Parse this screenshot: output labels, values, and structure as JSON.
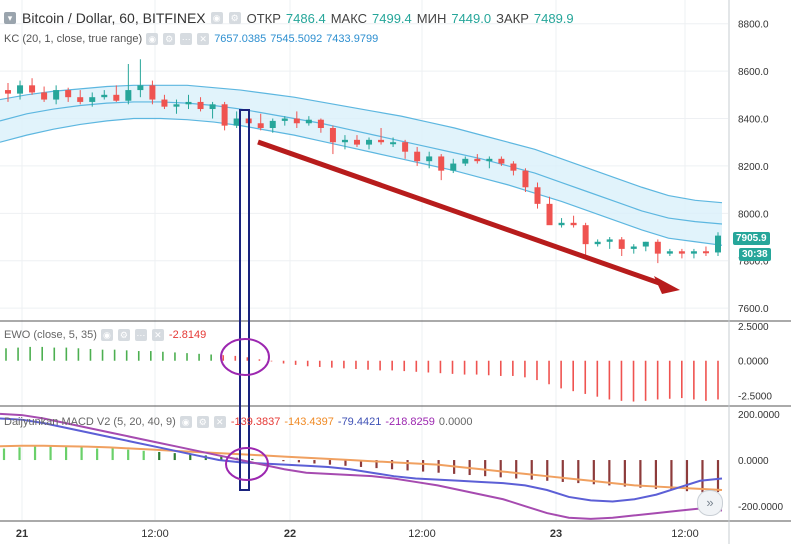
{
  "header": {
    "symbol": "Bitcoin / Dollar, 60, BITFINEX",
    "ohlc": [
      {
        "label": "ОТКР",
        "value": "7486.4"
      },
      {
        "label": "МАКС",
        "value": "7499.4"
      },
      {
        "label": "МИН",
        "value": "7449.0"
      },
      {
        "label": "ЗАКР",
        "value": "7489.9"
      }
    ]
  },
  "kc_legend": {
    "name": "KC (20, 1, close, true range)",
    "values": [
      "7657.0385",
      "7545.5092",
      "7433.9799"
    ]
  },
  "ewo_legend": {
    "name": "EWO (close, 5, 35)",
    "value": "-2.8149"
  },
  "macd_legend": {
    "name": "Daijyunkan MACD V2 (5, 20, 40, 9)",
    "values": [
      "-139.3837",
      "-143.4397",
      "-79.4421",
      "-218.8259",
      "0.0000"
    ]
  },
  "price_badges": {
    "last": "7905.9",
    "timer": "30:38"
  },
  "colors": {
    "up": "#26a69a",
    "down": "#ef5350",
    "kc_band": "#5db7e0",
    "kc_fill": "#d9f0fa",
    "arrow": "#b71c1c",
    "rect": "#1a237e",
    "circle": "#9c27b0",
    "macd_blue": "#5c5fd6",
    "macd_purple": "#a64bb0",
    "macd_orange": "#f0a060",
    "hist_green": "#6ad06a",
    "hist_dark": "#8d3b3b"
  },
  "icons": [
    "eye-icon",
    "settings-icon",
    "close-icon",
    "forward-icon"
  ],
  "chart_data": [
    {
      "type": "candlestick",
      "panel": "price",
      "ylim": [
        7550,
        8900
      ],
      "yticks": [
        7600,
        7800,
        8000,
        8200,
        8400,
        8600,
        8800
      ],
      "ytick_labels": [
        "7600.0",
        "7800.0",
        "8000.0",
        "8200.0",
        "8400.0",
        "8600.0",
        "8800.0"
      ],
      "x_labels": [
        "21",
        "12:00",
        "22",
        "12:00",
        "23",
        "12:00"
      ],
      "candles": [
        [
          8520,
          8550,
          8470,
          8505
        ],
        [
          8505,
          8560,
          8480,
          8540
        ],
        [
          8540,
          8570,
          8500,
          8510
        ],
        [
          8510,
          8535,
          8470,
          8480
        ],
        [
          8480,
          8540,
          8460,
          8520
        ],
        [
          8520,
          8530,
          8470,
          8490
        ],
        [
          8490,
          8520,
          8460,
          8470
        ],
        [
          8470,
          8510,
          8450,
          8490
        ],
        [
          8490,
          8520,
          8480,
          8500
        ],
        [
          8500,
          8540,
          8470,
          8475
        ],
        [
          8475,
          8630,
          8460,
          8520
        ],
        [
          8520,
          8650,
          8490,
          8540
        ],
        [
          8540,
          8560,
          8460,
          8480
        ],
        [
          8480,
          8500,
          8440,
          8450
        ],
        [
          8450,
          8480,
          8420,
          8460
        ],
        [
          8460,
          8500,
          8440,
          8470
        ],
        [
          8470,
          8490,
          8430,
          8440
        ],
        [
          8440,
          8470,
          8400,
          8460
        ],
        [
          8460,
          8470,
          8350,
          8370
        ],
        [
          8370,
          8430,
          8360,
          8400
        ],
        [
          8400,
          8420,
          8360,
          8380
        ],
        [
          8380,
          8420,
          8350,
          8360
        ],
        [
          8360,
          8400,
          8340,
          8390
        ],
        [
          8390,
          8410,
          8370,
          8400
        ],
        [
          8400,
          8430,
          8360,
          8380
        ],
        [
          8380,
          8410,
          8370,
          8395
        ],
        [
          8395,
          8400,
          8340,
          8360
        ],
        [
          8360,
          8370,
          8250,
          8300
        ],
        [
          8300,
          8330,
          8270,
          8310
        ],
        [
          8310,
          8330,
          8280,
          8290
        ],
        [
          8290,
          8320,
          8270,
          8310
        ],
        [
          8310,
          8360,
          8290,
          8300
        ],
        [
          8300,
          8320,
          8280,
          8300
        ],
        [
          8300,
          8310,
          8230,
          8260
        ],
        [
          8260,
          8280,
          8200,
          8220
        ],
        [
          8220,
          8260,
          8190,
          8240
        ],
        [
          8240,
          8250,
          8140,
          8180
        ],
        [
          8180,
          8230,
          8170,
          8210
        ],
        [
          8210,
          8240,
          8200,
          8230
        ],
        [
          8230,
          8250,
          8210,
          8220
        ],
        [
          8220,
          8240,
          8190,
          8230
        ],
        [
          8230,
          8240,
          8200,
          8210
        ],
        [
          8210,
          8220,
          8160,
          8180
        ],
        [
          8180,
          8190,
          8090,
          8110
        ],
        [
          8110,
          8130,
          8020,
          8040
        ],
        [
          8040,
          8070,
          7960,
          7950
        ],
        [
          7950,
          7980,
          7940,
          7960
        ],
        [
          7960,
          7990,
          7940,
          7950
        ],
        [
          7950,
          7960,
          7820,
          7870
        ],
        [
          7870,
          7890,
          7860,
          7880
        ],
        [
          7880,
          7900,
          7850,
          7890
        ],
        [
          7890,
          7900,
          7820,
          7850
        ],
        [
          7850,
          7870,
          7830,
          7860
        ],
        [
          7860,
          7880,
          7840,
          7880
        ],
        [
          7880,
          7890,
          7790,
          7830
        ],
        [
          7830,
          7850,
          7820,
          7840
        ],
        [
          7840,
          7850,
          7810,
          7830
        ],
        [
          7830,
          7850,
          7810,
          7840
        ],
        [
          7840,
          7860,
          7820,
          7835
        ],
        [
          7835,
          7920,
          7820,
          7906
        ]
      ],
      "kc_upper": [
        8480,
        8500,
        8515,
        8525,
        8535,
        8540,
        8540,
        8540,
        8530,
        8520,
        8505,
        8490,
        8470,
        8450,
        8430,
        8410,
        8385,
        8360,
        8330,
        8300,
        8270,
        8230,
        8190,
        8150,
        8110,
        8075,
        8055,
        8045
      ],
      "kc_mid": [
        8390,
        8420,
        8440,
        8455,
        8465,
        8470,
        8470,
        8465,
        8455,
        8440,
        8420,
        8400,
        8380,
        8355,
        8330,
        8305,
        8280,
        8255,
        8230,
        8200,
        8170,
        8130,
        8090,
        8050,
        8010,
        7980,
        7965,
        7955
      ],
      "kc_lower": [
        8300,
        8330,
        8355,
        8375,
        8390,
        8400,
        8400,
        8395,
        8385,
        8370,
        8350,
        8330,
        8305,
        8280,
        8255,
        8230,
        8205,
        8180,
        8150,
        8120,
        8085,
        8050,
        8010,
        7970,
        7930,
        7895,
        7880,
        7865
      ]
    },
    {
      "type": "bar",
      "panel": "EWO",
      "ylim": [
        -3.2,
        2.8
      ],
      "yticks": [
        2.5,
        0,
        -2.5
      ],
      "ytick_labels": [
        "2.5000",
        "0.0000",
        "-2.5000"
      ],
      "values": [
        0.9,
        0.95,
        1.0,
        1.0,
        0.95,
        0.95,
        0.9,
        0.85,
        0.8,
        0.8,
        0.75,
        0.7,
        0.7,
        0.65,
        0.6,
        0.55,
        0.5,
        0.45,
        0.4,
        0.35,
        0.25,
        0.1,
        -0.05,
        -0.2,
        -0.3,
        -0.4,
        -0.45,
        -0.5,
        -0.55,
        -0.6,
        -0.65,
        -0.7,
        -0.7,
        -0.75,
        -0.8,
        -0.85,
        -0.9,
        -0.95,
        -1.0,
        -1.0,
        -1.05,
        -1.1,
        -1.1,
        -1.2,
        -1.4,
        -1.7,
        -2.0,
        -2.2,
        -2.4,
        -2.6,
        -2.8,
        -2.9,
        -2.95,
        -2.9,
        -2.8,
        -2.75,
        -2.7,
        -2.8,
        -2.9,
        -2.8
      ]
    },
    {
      "type": "line",
      "panel": "MACD",
      "ylim": [
        -260,
        230
      ],
      "yticks": [
        200,
        0,
        -200
      ],
      "ytick_labels": [
        "200.0000",
        "0.0000",
        "-200.0000"
      ],
      "hist": [
        50,
        55,
        60,
        60,
        58,
        55,
        50,
        50,
        45,
        40,
        35,
        30,
        25,
        20,
        15,
        10,
        5,
        0,
        -5,
        -10,
        -15,
        -20,
        -25,
        -30,
        -35,
        -40,
        -45,
        -50,
        -55,
        -60,
        -65,
        -70,
        -75,
        -80,
        -85,
        -90,
        -95,
        -100,
        -105,
        -110,
        -115,
        -120,
        -125,
        -130,
        -135,
        -140,
        -139
      ],
      "blue": [
        180,
        175,
        160,
        140,
        120,
        100,
        80,
        60,
        40,
        20,
        0,
        -10,
        -15,
        -20,
        -25,
        -30,
        -40,
        -55,
        -70,
        -80,
        -85,
        -90,
        -95,
        -100,
        -110,
        -130,
        -160,
        -175,
        -180,
        -170,
        -150,
        -120,
        -90,
        -80
      ],
      "purple": [
        200,
        195,
        180,
        160,
        140,
        120,
        100,
        80,
        60,
        40,
        20,
        0,
        -20,
        -40,
        -55,
        -60,
        -65,
        -70,
        -80,
        -95,
        -110,
        -130,
        -150,
        -170,
        -200,
        -230,
        -250,
        -255,
        -250,
        -240,
        -230,
        -220,
        -210,
        -219
      ],
      "orange": [
        60,
        62,
        62,
        60,
        58,
        55,
        50,
        45,
        40,
        35,
        30,
        25,
        20,
        15,
        10,
        5,
        0,
        -5,
        -10,
        -15,
        -20,
        -30,
        -40,
        -50,
        -60,
        -70,
        -80,
        -90,
        -100,
        -110,
        -115,
        -120,
        -125,
        -130
      ]
    }
  ]
}
